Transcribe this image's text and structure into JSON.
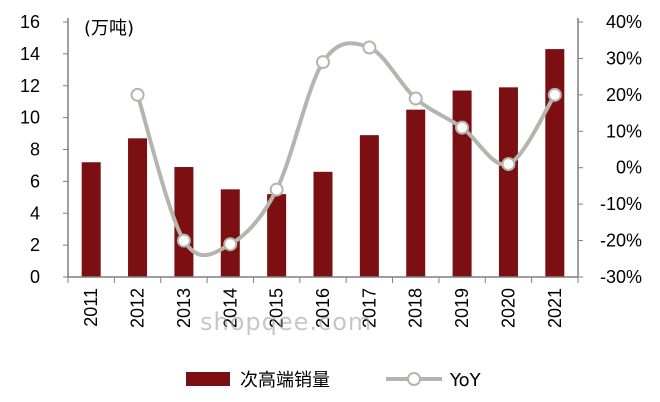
{
  "chart_data": {
    "type": "bar",
    "unit_label": "(万吨)",
    "categories": [
      "2011",
      "2012",
      "2013",
      "2014",
      "2015",
      "2016",
      "2017",
      "2018",
      "2019",
      "2020",
      "2021"
    ],
    "series": [
      {
        "name": "次高端销量",
        "type": "bar",
        "axis": "left",
        "color": "#7b0f12",
        "values": [
          7.2,
          8.7,
          6.9,
          5.5,
          5.2,
          6.6,
          8.9,
          10.5,
          11.7,
          11.9,
          14.3
        ]
      },
      {
        "name": "YoY",
        "type": "line",
        "axis": "right",
        "color": "#b5b5ae",
        "values": [
          null,
          20,
          -20,
          -21,
          -6,
          29,
          33,
          19,
          11,
          1,
          20
        ]
      }
    ],
    "y_left": {
      "min": 0,
      "max": 16,
      "ticks": [
        "0",
        "2",
        "4",
        "6",
        "8",
        "10",
        "12",
        "14",
        "16"
      ]
    },
    "y_right": {
      "min": -30,
      "max": 40,
      "ticks": [
        "-30%",
        "-20%",
        "-10%",
        "0%",
        "10%",
        "20%",
        "30%",
        "40%"
      ]
    },
    "grid": false,
    "legend_position": "bottom"
  },
  "watermark": "shopqee.com"
}
